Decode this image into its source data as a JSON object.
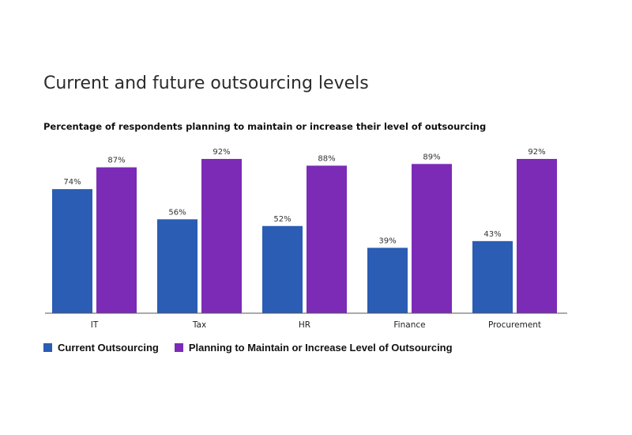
{
  "chart_data": {
    "type": "bar",
    "title": "Current and future outsourcing levels",
    "subtitle": "Percentage of respondents planning to maintain or increase their level of outsourcing",
    "categories": [
      "IT",
      "Tax",
      "HR",
      "Finance",
      "Procurement"
    ],
    "series": [
      {
        "name": "Current Outsourcing",
        "color": "#2a5db3",
        "values": [
          74,
          56,
          52,
          39,
          43
        ],
        "labels": [
          "74%",
          "56%",
          "52%",
          "39%",
          "43%"
        ]
      },
      {
        "name": "Planning to Maintain or Increase Level of Outsourcing",
        "color": "#7b2bb6",
        "values": [
          87,
          92,
          88,
          89,
          92
        ],
        "labels": [
          "87%",
          "92%",
          "88%",
          "89%",
          "92%"
        ]
      }
    ],
    "ylim": [
      0,
      100
    ],
    "grid": false,
    "legend_position": "bottom-left"
  }
}
